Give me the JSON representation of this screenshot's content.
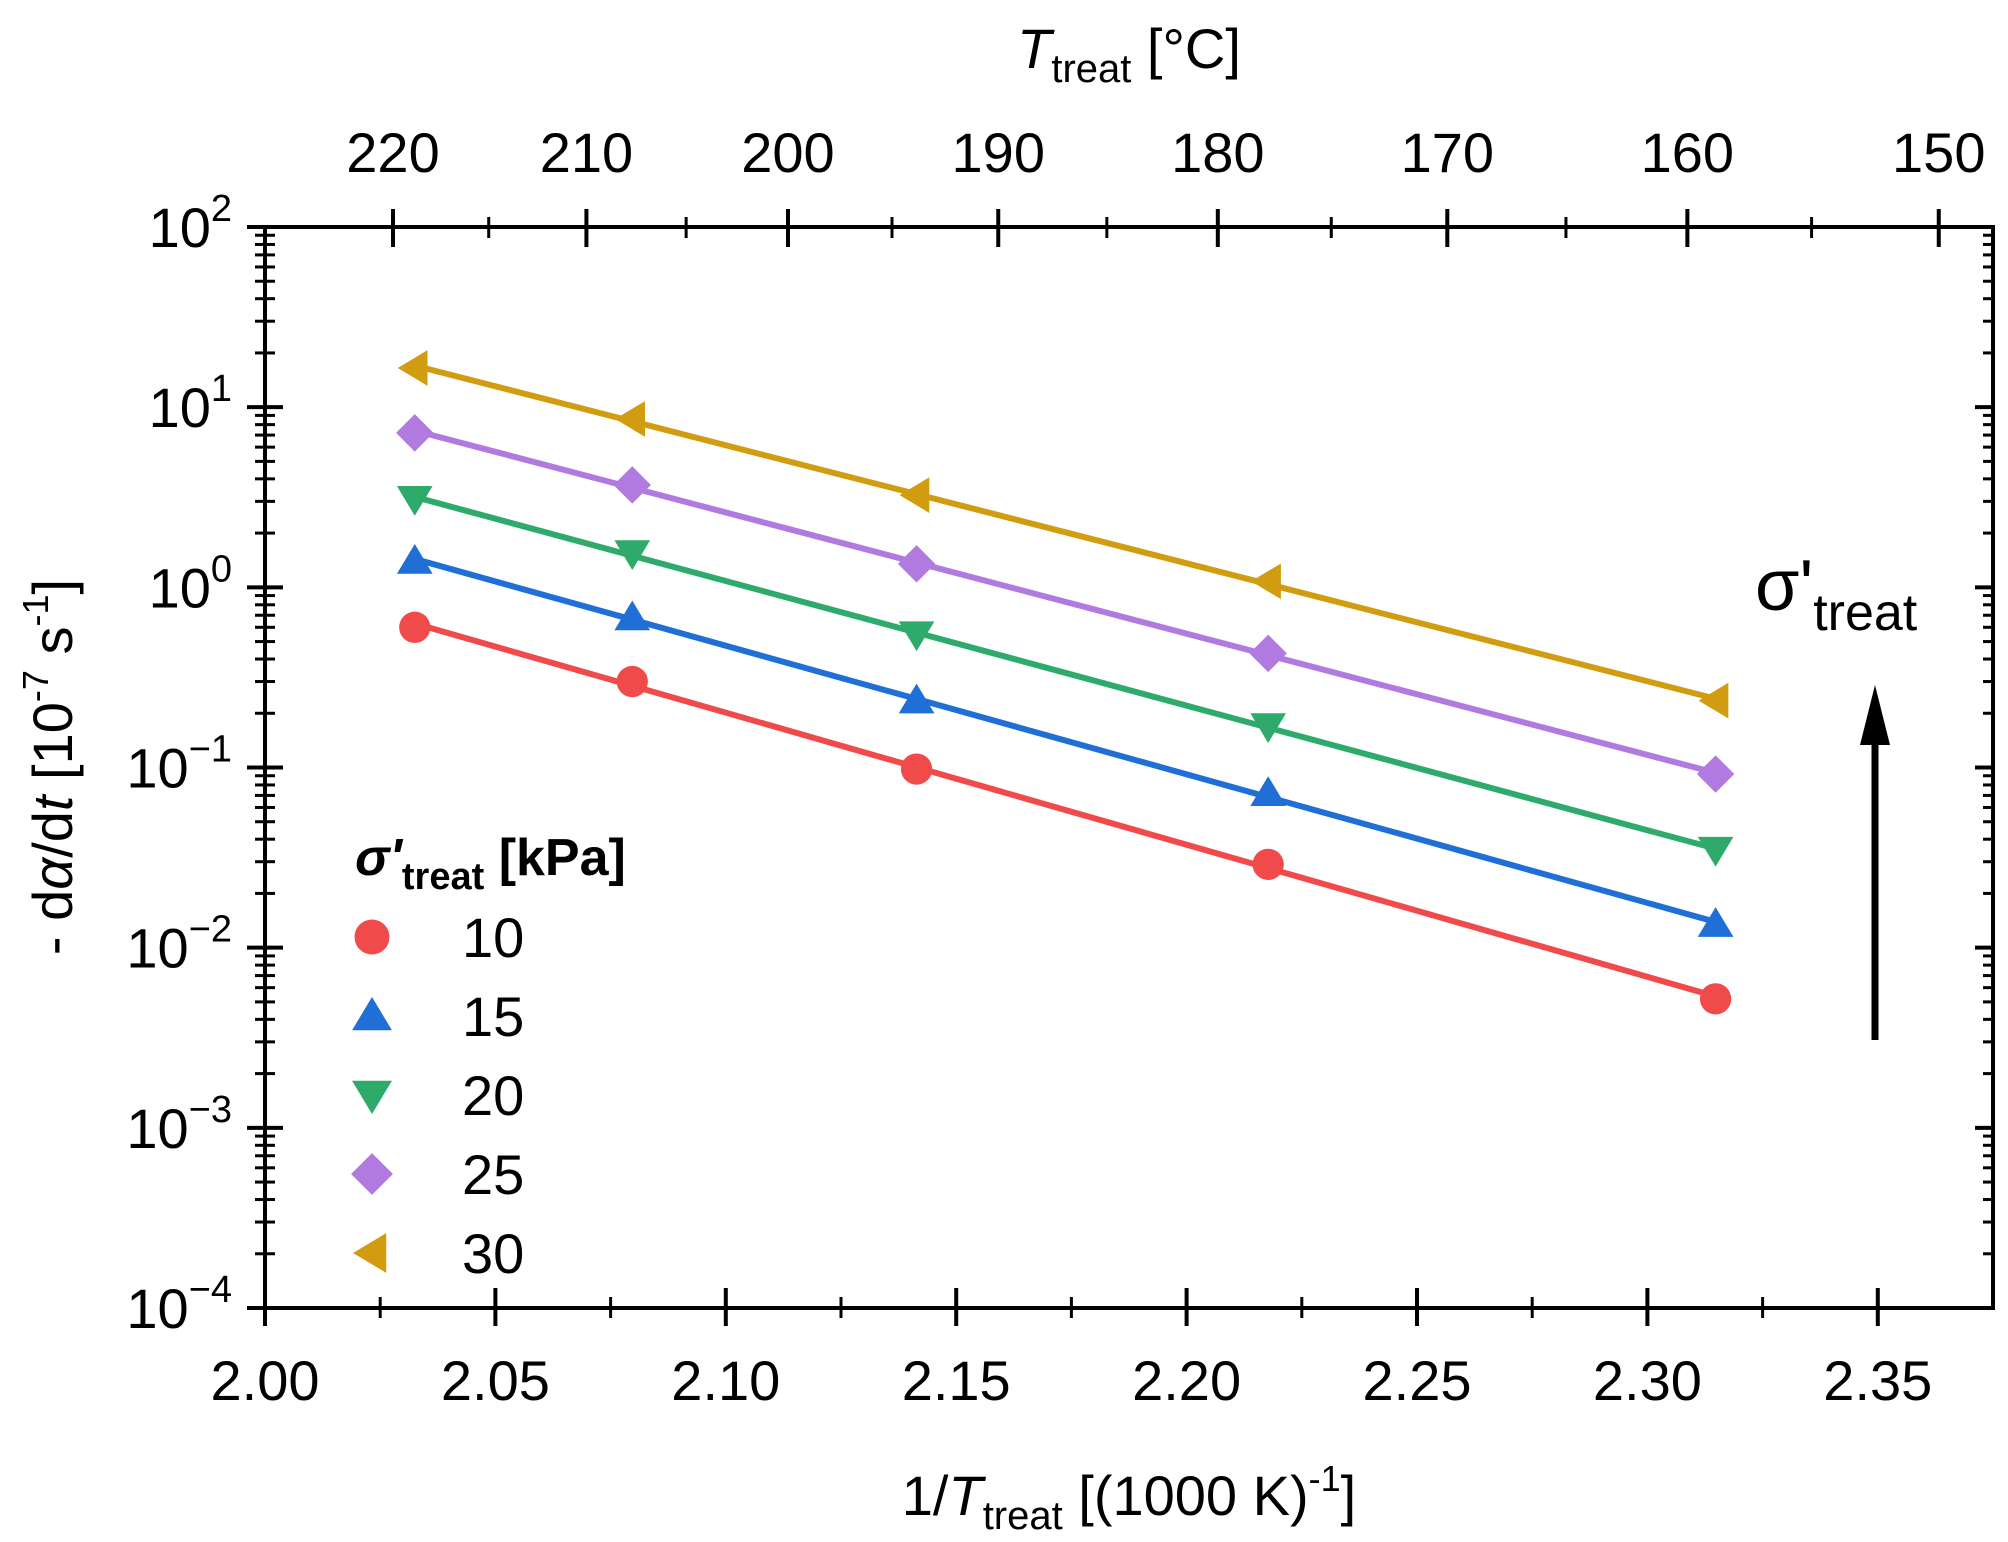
{
  "chart_data": {
    "type": "scatter",
    "title": "",
    "xlabel": {
      "prefix": "1/",
      "var": "T",
      "sub": "treat",
      "suffix": " [(1000 K)",
      "sup": "-1",
      "end": "]"
    },
    "top_xlabel": {
      "var": "T",
      "sub": "treat",
      "suffix": " [°C]"
    },
    "ylabel": {
      "prefix": "- d",
      "alpha": "α",
      "mid": "/d",
      "t": "t",
      "unit_open": " [10",
      "unit_exp": "-7",
      "unit_mid": " s",
      "unit_exp2": "-1",
      "unit_close": "]"
    },
    "xlim": [
      2.0,
      2.375
    ],
    "ylim_log10": [
      -4,
      2
    ],
    "yscale": "log",
    "x_ticks": [
      "2.00",
      "2.05",
      "2.10",
      "2.15",
      "2.20",
      "2.25",
      "2.30",
      "2.35"
    ],
    "y_ticks": [
      {
        "base": "10",
        "exp": "−4"
      },
      {
        "base": "10",
        "exp": "−3"
      },
      {
        "base": "10",
        "exp": "−2"
      },
      {
        "base": "10",
        "exp": "−1"
      },
      {
        "base": "10",
        "exp": "0"
      },
      {
        "base": "10",
        "exp": "1"
      },
      {
        "base": "10",
        "exp": "2"
      }
    ],
    "top_ticks": [
      "220",
      "210",
      "200",
      "190",
      "180",
      "170",
      "160",
      "150"
    ],
    "legend": {
      "title_symbol": "σ'",
      "title_sub": "treat",
      "title_unit": " [kPa]",
      "position": "left-bottom"
    },
    "annotation": {
      "symbol": "σ'",
      "sub": "treat"
    },
    "x": [
      2.0325,
      2.0797,
      2.1414,
      2.2177,
      2.3148
    ],
    "series": [
      {
        "name": "10",
        "marker": "circle",
        "color": "#f04a4a",
        "values": [
          0.6,
          0.3,
          0.098,
          0.029,
          0.0052
        ]
      },
      {
        "name": "15",
        "marker": "triangle-up",
        "color": "#1f6fd6",
        "values": [
          1.4,
          0.68,
          0.235,
          0.072,
          0.0135
        ]
      },
      {
        "name": "20",
        "marker": "triangle-down",
        "color": "#2eaa6b",
        "values": [
          3.1,
          1.55,
          0.55,
          0.17,
          0.035
        ]
      },
      {
        "name": "25",
        "marker": "diamond",
        "color": "#b07ae0",
        "values": [
          7.2,
          3.7,
          1.35,
          0.43,
          0.092
        ]
      },
      {
        "name": "30",
        "marker": "triangle-left",
        "color": "#d19c10",
        "values": [
          16.5,
          8.6,
          3.25,
          1.08,
          0.235
        ]
      }
    ]
  }
}
